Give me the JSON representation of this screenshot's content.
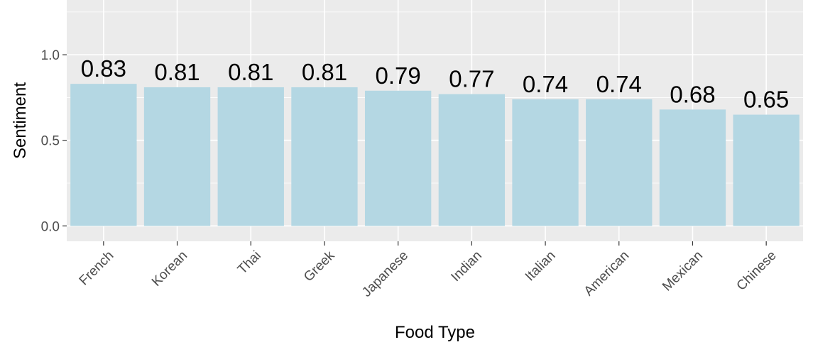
{
  "chart_data": {
    "type": "bar",
    "title": "",
    "xlabel": "Food Type",
    "ylabel": "Sentiment",
    "categories": [
      "French",
      "Korean",
      "Thai",
      "Greek",
      "Japanese",
      "Indian",
      "Italian",
      "American",
      "Mexican",
      "Chinese"
    ],
    "values": [
      0.83,
      0.81,
      0.81,
      0.81,
      0.79,
      0.77,
      0.74,
      0.74,
      0.68,
      0.65
    ],
    "data_labels": [
      "0.83",
      "0.81",
      "0.81",
      "0.81",
      "0.79",
      "0.77",
      "0.74",
      "0.74",
      "0.68",
      "0.65"
    ],
    "y_ticks": [
      0.0,
      0.5,
      1.0
    ],
    "y_tick_labels": [
      "0.0",
      "0.5",
      "1.0"
    ],
    "ylim": [
      -0.09,
      1.32
    ],
    "grid": true,
    "legend": "none",
    "bar_color": "#b4d7e3",
    "panel_color": "#ebebeb",
    "grid_color": "#ffffff"
  }
}
